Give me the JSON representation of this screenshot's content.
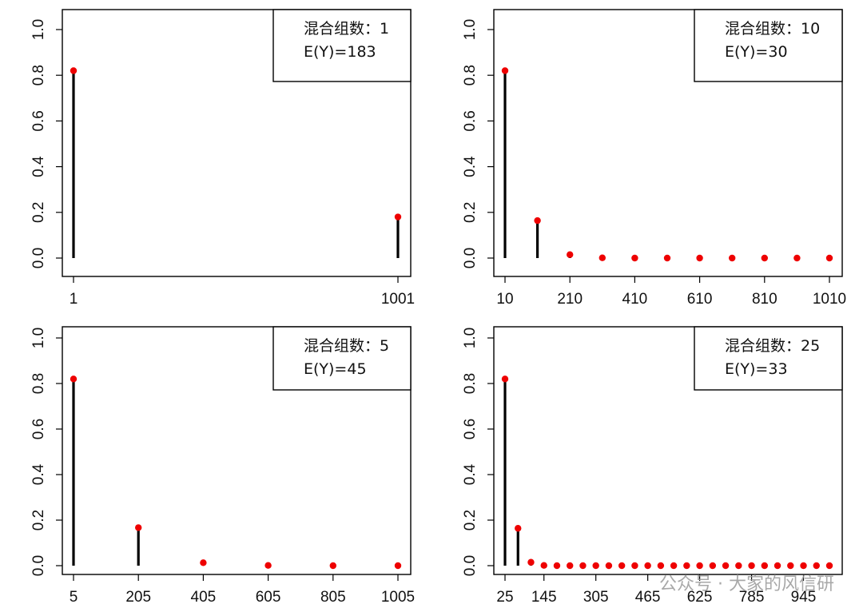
{
  "chart_data": [
    {
      "type": "stem",
      "legend": {
        "line1": "混合组数：1",
        "line2": "E(Y)=183",
        "placement": "top-right"
      },
      "x": [
        1,
        1001
      ],
      "y": [
        0.82,
        0.18
      ],
      "xticks": [
        "1",
        "1001"
      ],
      "ylim": [
        0,
        1
      ],
      "yticks": [
        "0.0",
        "0.2",
        "0.4",
        "0.6",
        "0.8",
        "1.0"
      ],
      "colors": {
        "stem": "#000000",
        "point": "#ee0000"
      }
    },
    {
      "type": "stem",
      "legend": {
        "line1": "混合组数：10",
        "line2": "E(Y)=30",
        "placement": "top-right"
      },
      "x": [
        10,
        110,
        210,
        310,
        410,
        510,
        610,
        710,
        810,
        910,
        1010
      ],
      "y": [
        0.82,
        0.164,
        0.015,
        0.001,
        0,
        0,
        0,
        0,
        0,
        0,
        0
      ],
      "xticks": [
        "10",
        "210",
        "410",
        "610",
        "810",
        "1010"
      ],
      "ylim": [
        0,
        1
      ],
      "yticks": [
        "0.0",
        "0.2",
        "0.4",
        "0.6",
        "0.8",
        "1.0"
      ],
      "colors": {
        "stem": "#000000",
        "point": "#ee0000"
      }
    },
    {
      "type": "stem",
      "legend": {
        "line1": "混合组数：5",
        "line2": "E(Y)=45",
        "placement": "top-right"
      },
      "x": [
        5,
        205,
        405,
        605,
        805,
        1005
      ],
      "y": [
        0.82,
        0.167,
        0.013,
        0.001,
        0,
        0
      ],
      "xticks": [
        "5",
        "205",
        "405",
        "605",
        "805",
        "1005"
      ],
      "ylim": [
        0,
        1
      ],
      "yticks": [
        "0.0",
        "0.2",
        "0.4",
        "0.6",
        "0.8",
        "1.0"
      ],
      "colors": {
        "stem": "#000000",
        "point": "#ee0000"
      }
    },
    {
      "type": "stem",
      "legend": {
        "line1": "混合组数：25",
        "line2": "E(Y)=33",
        "placement": "top-right"
      },
      "x": [
        25,
        65,
        105,
        145,
        185,
        225,
        265,
        305,
        345,
        385,
        425,
        465,
        505,
        545,
        585,
        625,
        665,
        705,
        745,
        785,
        825,
        865,
        905,
        945,
        985,
        1025
      ],
      "y": [
        0.82,
        0.164,
        0.015,
        0.001,
        0,
        0,
        0,
        0,
        0,
        0,
        0,
        0,
        0,
        0,
        0,
        0,
        0,
        0,
        0,
        0,
        0,
        0,
        0,
        0,
        0,
        0
      ],
      "xticks": [
        "25",
        "145",
        "305",
        "465",
        "625",
        "785",
        "945"
      ],
      "ylim": [
        0,
        1
      ],
      "yticks": [
        "0.0",
        "0.2",
        "0.4",
        "0.6",
        "0.8",
        "1.0"
      ],
      "colors": {
        "stem": "#000000",
        "point": "#ee0000"
      }
    }
  ],
  "watermark": "公众号 · 大家的风信研"
}
